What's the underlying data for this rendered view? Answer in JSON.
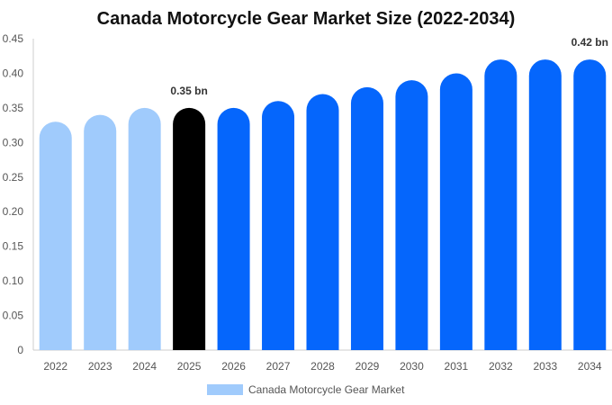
{
  "chart_data": {
    "type": "bar",
    "title": "Canada Motorcycle Gear Market Size (2022-2034)",
    "xlabel": "",
    "ylabel": "",
    "categories": [
      "2022",
      "2023",
      "2024",
      "2025",
      "2026",
      "2027",
      "2028",
      "2029",
      "2030",
      "2031",
      "2032",
      "2033",
      "2034"
    ],
    "series": [
      {
        "name": "Canada Motorcycle Gear Market",
        "values": [
          0.33,
          0.34,
          0.35,
          0.35,
          0.35,
          0.36,
          0.37,
          0.38,
          0.39,
          0.4,
          0.42,
          0.42,
          0.42
        ]
      }
    ],
    "ylim": [
      0,
      0.45
    ],
    "yticks": [
      "0",
      "0.05",
      "0.10",
      "0.15",
      "0.20",
      "0.25",
      "0.30",
      "0.35",
      "0.40",
      "0.45"
    ],
    "annotations": [
      {
        "category": "2025",
        "text": "0.35 bn"
      },
      {
        "category": "2034",
        "text": "0.42 bn"
      }
    ],
    "colors": {
      "historical": "#a0cbfc",
      "current": "#000000",
      "forecast": "#0566fc"
    },
    "grid": false,
    "legend_position": "bottom"
  }
}
